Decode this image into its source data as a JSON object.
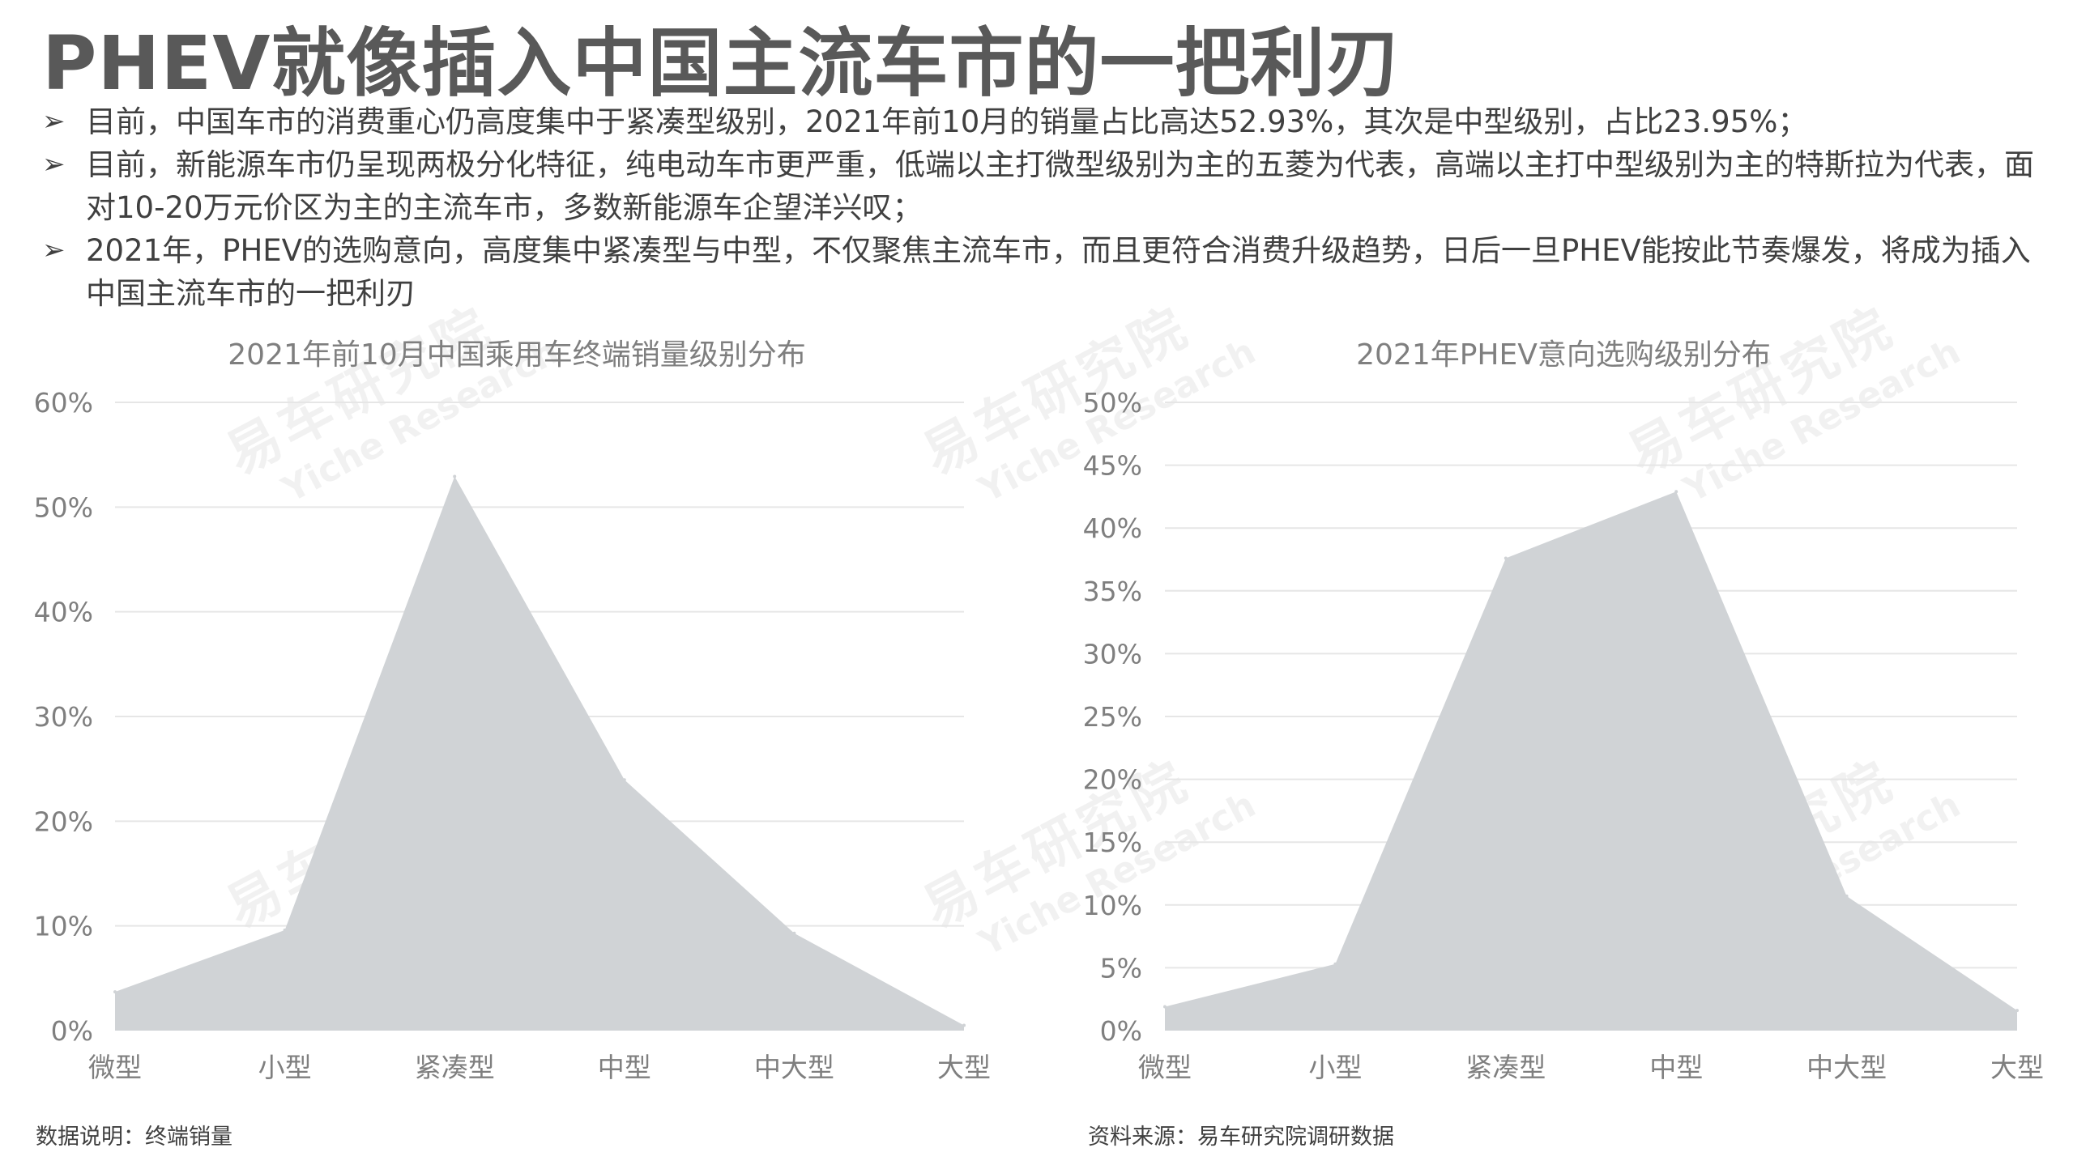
{
  "title": "PHEV就像插入中国主流车市的一把利刃",
  "bullet_marker": "➢",
  "bullets": [
    "目前，中国车市的消费重心仍高度集中于紧凑型级别，2021年前10月的销量占比高达52.93%，其次是中型级别，占比23.95%；",
    "目前，新能源车市仍呈现两极分化特征，纯电动车市更严重，低端以主打微型级别为主的五菱为代表，高端以主打中型级别为主的特斯拉为代表，面对10-20万元价区为主的主流车市，多数新能源车企望洋兴叹；",
    "2021年，PHEV的选购意向，高度集中紧凑型与中型，不仅聚焦主流车市，而且更符合消费升级趋势，日后一旦PHEV能按此节奏爆发，将成为插入中国主流车市的一把利刃"
  ],
  "watermark": {
    "cn": "易车研究院",
    "en": "Yiche Research"
  },
  "chart_data": [
    {
      "type": "area",
      "title": "2021年前10月中国乘用车终端销量级别分布",
      "categories": [
        "微型",
        "小型",
        "紧凑型",
        "中型",
        "中大型",
        "大型"
      ],
      "values": [
        3.7,
        9.6,
        52.93,
        23.95,
        9.3,
        0.5
      ],
      "ylim": [
        0,
        60
      ],
      "yticks": [
        0,
        10,
        20,
        30,
        40,
        50,
        60
      ],
      "ytick_labels": [
        "0%",
        "10%",
        "20%",
        "30%",
        "40%",
        "50%",
        "60%"
      ],
      "grid": true,
      "fill_color": "#d0d3d6"
    },
    {
      "type": "area",
      "title": "2021年PHEV意向选购级别分布",
      "categories": [
        "微型",
        "小型",
        "紧凑型",
        "中型",
        "中大型",
        "大型"
      ],
      "values": [
        1.9,
        5.3,
        37.6,
        42.9,
        10.7,
        1.6
      ],
      "ylim": [
        0,
        50
      ],
      "yticks": [
        0,
        5,
        10,
        15,
        20,
        25,
        30,
        35,
        40,
        45,
        50
      ],
      "ytick_labels": [
        "0%",
        "5%",
        "10%",
        "15%",
        "20%",
        "25%",
        "30%",
        "35%",
        "40%",
        "45%",
        "50%"
      ],
      "grid": true,
      "fill_color": "#d0d3d6"
    }
  ],
  "footnotes": {
    "left": "数据说明：终端销量",
    "right": "资料来源：易车研究院调研数据"
  },
  "colors": {
    "title": "#595959",
    "text": "#404040",
    "axis_text": "#7f7f7f",
    "grid": "#e6e6e6"
  }
}
